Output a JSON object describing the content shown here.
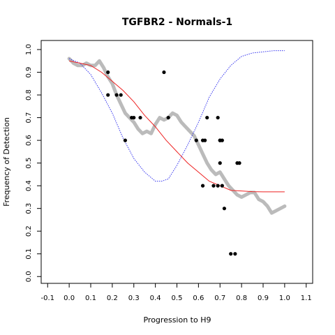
{
  "chart_data": {
    "type": "scatter",
    "title": "TGFBR2 - Normals-1",
    "xlabel": "Progression to H9",
    "ylabel": "Frequency of Detection",
    "xlim": [
      -0.13,
      1.13
    ],
    "ylim": [
      -0.03,
      1.04
    ],
    "x_ticks": [
      -0.1,
      0.0,
      0.1,
      0.2,
      0.3,
      0.4,
      0.5,
      0.6,
      0.7,
      0.8,
      0.9,
      1.0,
      1.1
    ],
    "x_tick_labels": [
      "-0.1",
      "0.0",
      "0.1",
      "0.2",
      "0.3",
      "0.4",
      "0.5",
      "0.6",
      "0.7",
      "0.8",
      "0.9",
      "1.0",
      "1.1"
    ],
    "y_ticks": [
      0.0,
      0.1,
      0.2,
      0.3,
      0.4,
      0.5,
      0.6,
      0.7,
      0.8,
      0.9,
      1.0
    ],
    "y_tick_labels": [
      "0.0",
      "0.1",
      "0.2",
      "0.3",
      "0.4",
      "0.5",
      "0.6",
      "0.7",
      "0.8",
      "0.9",
      "1.0"
    ],
    "grid": false,
    "legend": "none",
    "colors": {
      "points": "#000000",
      "smooth": "#bbbbbb",
      "fit": "#ee2222",
      "reference": "#3333ee"
    },
    "series": [
      {
        "kind": "points",
        "x": [
          0.18,
          0.18,
          0.22,
          0.24,
          0.26,
          0.29,
          0.3,
          0.33,
          0.44,
          0.46,
          0.59,
          0.62,
          0.62,
          0.63,
          0.64,
          0.67,
          0.69,
          0.69,
          0.7,
          0.7,
          0.7,
          0.71,
          0.71,
          0.72,
          0.75,
          0.77,
          0.78,
          0.79
        ],
        "y": [
          0.9,
          0.8,
          0.8,
          0.8,
          0.6,
          0.7,
          0.7,
          0.7,
          0.9,
          0.7,
          0.6,
          0.6,
          0.4,
          0.6,
          0.7,
          0.4,
          0.7,
          0.4,
          0.6,
          0.6,
          0.5,
          0.6,
          0.4,
          0.3,
          0.1,
          0.1,
          0.5,
          0.5
        ]
      },
      {
        "kind": "smooth",
        "x": [
          0.0,
          0.02,
          0.04,
          0.06,
          0.08,
          0.1,
          0.12,
          0.14,
          0.16,
          0.18,
          0.2,
          0.22,
          0.24,
          0.26,
          0.28,
          0.3,
          0.32,
          0.34,
          0.36,
          0.38,
          0.4,
          0.42,
          0.44,
          0.46,
          0.48,
          0.5,
          0.52,
          0.54,
          0.56,
          0.58,
          0.6,
          0.62,
          0.64,
          0.66,
          0.68,
          0.7,
          0.72,
          0.74,
          0.76,
          0.78,
          0.8,
          0.82,
          0.84,
          0.86,
          0.88,
          0.9,
          0.92,
          0.94,
          0.96,
          0.98,
          1.0
        ],
        "y": [
          0.96,
          0.94,
          0.93,
          0.93,
          0.94,
          0.93,
          0.93,
          0.95,
          0.92,
          0.88,
          0.85,
          0.8,
          0.76,
          0.72,
          0.7,
          0.68,
          0.65,
          0.63,
          0.64,
          0.63,
          0.67,
          0.7,
          0.69,
          0.7,
          0.72,
          0.71,
          0.68,
          0.66,
          0.64,
          0.62,
          0.58,
          0.54,
          0.5,
          0.47,
          0.45,
          0.46,
          0.43,
          0.4,
          0.38,
          0.36,
          0.35,
          0.36,
          0.37,
          0.37,
          0.34,
          0.33,
          0.31,
          0.28,
          0.29,
          0.3,
          0.31
        ]
      },
      {
        "kind": "fit",
        "x": [
          0.0,
          0.05,
          0.1,
          0.15,
          0.2,
          0.25,
          0.3,
          0.35,
          0.4,
          0.45,
          0.5,
          0.55,
          0.6,
          0.65,
          0.7,
          0.75,
          0.8,
          0.85,
          0.9,
          0.95,
          1.0
        ],
        "y": [
          0.95,
          0.94,
          0.93,
          0.9,
          0.86,
          0.82,
          0.77,
          0.71,
          0.66,
          0.6,
          0.55,
          0.5,
          0.46,
          0.42,
          0.4,
          0.38,
          0.377,
          0.374,
          0.373,
          0.373,
          0.373
        ]
      },
      {
        "kind": "reference",
        "x": [
          0.0,
          0.05,
          0.1,
          0.15,
          0.2,
          0.25,
          0.3,
          0.35,
          0.4,
          0.43,
          0.46,
          0.5,
          0.55,
          0.6,
          0.65,
          0.7,
          0.75,
          0.8,
          0.85,
          0.9,
          0.95,
          1.0
        ],
        "y": [
          0.96,
          0.94,
          0.89,
          0.81,
          0.72,
          0.61,
          0.52,
          0.46,
          0.42,
          0.42,
          0.43,
          0.49,
          0.58,
          0.68,
          0.79,
          0.87,
          0.93,
          0.97,
          0.985,
          0.99,
          0.995,
          0.995
        ]
      }
    ]
  }
}
